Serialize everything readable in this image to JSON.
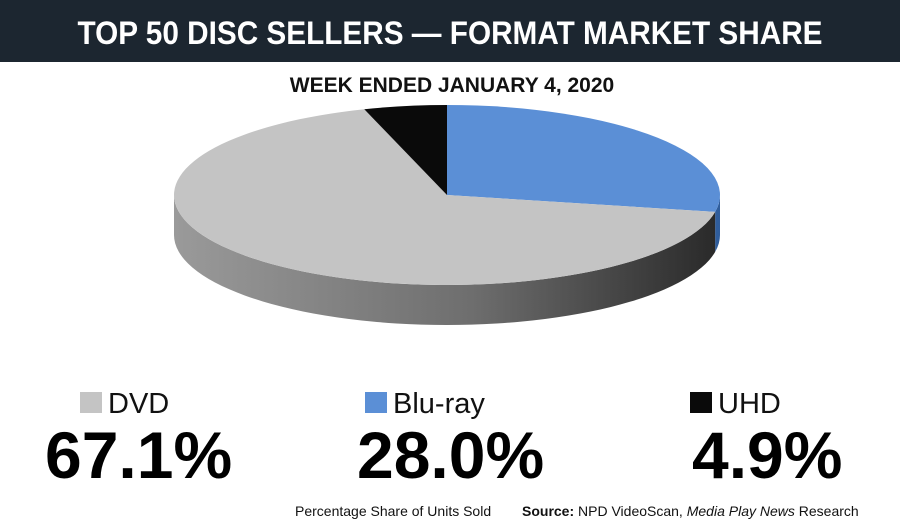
{
  "chart_data": {
    "type": "pie",
    "title": "TOP 50 DISC SELLERS — FORMAT MARKET SHARE",
    "subtitle": "WEEK ENDED JANUARY 4, 2020",
    "categories": [
      "DVD",
      "Blu-ray",
      "UHD"
    ],
    "values": [
      67.1,
      28.0,
      4.9
    ],
    "value_labels": [
      "67.1%",
      "28.0%",
      "4.9%"
    ],
    "colors": [
      "#c4c4c4",
      "#5b8fd6",
      "#0a0a0a"
    ],
    "footnote": "Percentage Share of Units Sold",
    "source": [
      "Source:",
      "NPD VideoScan,",
      "Media Play News",
      "Research"
    ]
  }
}
